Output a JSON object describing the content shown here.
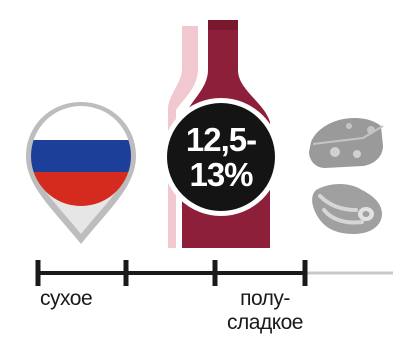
{
  "alcohol": {
    "line1": "12,5-",
    "line2": "13%"
  },
  "country_flag": {
    "icon": "russia-flag-pin-icon",
    "colors": {
      "white": "#ffffff",
      "blue": "#1c3f9a",
      "red": "#d52b1e"
    }
  },
  "bottle": {
    "icon": "wine-bottle-icon",
    "color": "#8e1f3a",
    "highlight_color": "#f1c8cf"
  },
  "food_pairing": [
    {
      "icon": "cheese-icon"
    },
    {
      "icon": "meat-steak-icon"
    }
  ],
  "sweetness_scale": {
    "dry_label": "сухое",
    "semi_label_line1": "полу-",
    "semi_label_line2": "сладкое",
    "line_color": "#1a1a1a"
  }
}
